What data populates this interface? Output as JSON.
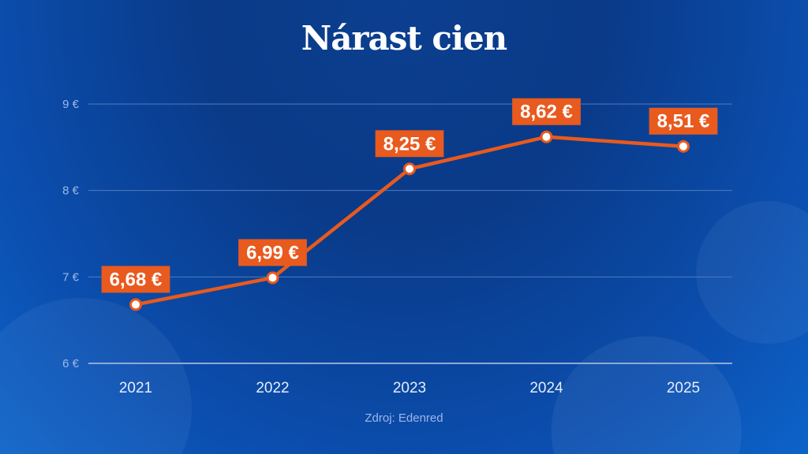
{
  "chart_data": {
    "type": "line",
    "title": "Nárast cien",
    "categories": [
      "2021",
      "2022",
      "2023",
      "2024",
      "2025"
    ],
    "series": [
      {
        "values": [
          6.68,
          6.99,
          8.25,
          8.62,
          8.51
        ]
      }
    ],
    "data_labels": [
      "6,68 €",
      "6,99 €",
      "8,25 €",
      "8,62 €",
      "8,51 €"
    ],
    "ylim": [
      6,
      9
    ],
    "yticks": [
      6,
      7,
      8,
      9
    ],
    "ytick_labels": [
      "6 €",
      "7 €",
      "8 €",
      "9 €"
    ],
    "xlabel": "",
    "ylabel": "",
    "grid": true,
    "legend": "none",
    "source": "Zdroj: Edenred",
    "colors": {
      "line": "#e85a1e",
      "label_bg": "#e85a1e",
      "marker_fill": "#ffffff",
      "grid": "#4f7bc2"
    }
  }
}
